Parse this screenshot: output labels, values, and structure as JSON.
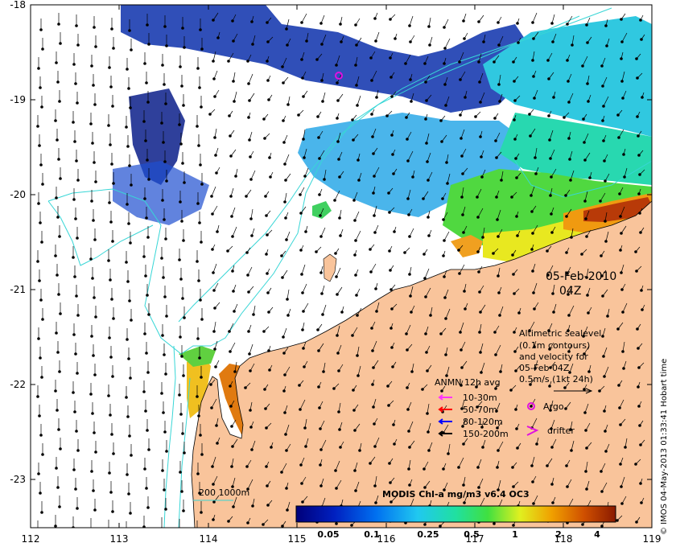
{
  "map": {
    "date": "05-Feb-2010",
    "time": "04Z",
    "x_ticks": [
      "112",
      "113",
      "114",
      "115",
      "116",
      "117",
      "118",
      "119"
    ],
    "y_ticks": [
      "-18",
      "-19",
      "-20",
      "-21",
      "-22",
      "-23"
    ],
    "credit": "© IMOS 04-May-2013 01:33:41 Hobart time",
    "colors": {
      "land": "#f9c49b",
      "ocean": "#ffffff",
      "contour": "#38d6d6"
    }
  },
  "legend": {
    "altimetry": [
      "Altimetric sealevel",
      "(0.1m contours)",
      "and velocity for",
      "05-Feb 04Z",
      "0.5m/s (1kt 24h)"
    ],
    "anmn_title": "ANMN 12h avg",
    "anmn_items": [
      {
        "label": "10-30m",
        "color": "#ff33ff"
      },
      {
        "label": "50-70m",
        "color": "#ff0000"
      },
      {
        "label": "80-120m",
        "color": "#0000ff"
      },
      {
        "label": "150-200m",
        "color": "#000000"
      }
    ],
    "argo": "Argo",
    "drifter": "drifter",
    "bathy": "200  1000m"
  },
  "colorbar": {
    "title": "MODIS Chl-a mg/m3 v6.4 OC3",
    "ticks": [
      "0.05",
      "0.1",
      "0.25",
      "0.5",
      "1",
      "2",
      "4"
    ]
  }
}
